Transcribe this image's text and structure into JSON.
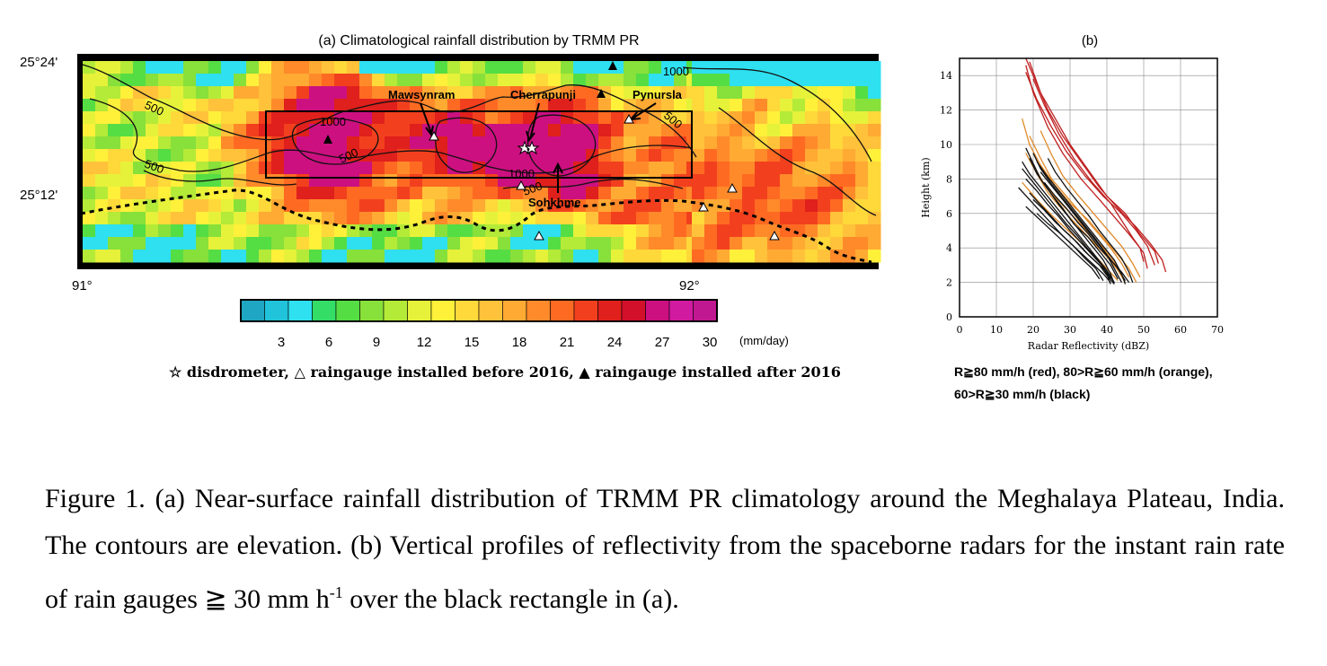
{
  "panel_a": {
    "title": "(a) Climatological rainfall distribution by TRMM PR",
    "lat_labels": [
      "25°24'",
      "25°12'"
    ],
    "lon_labels": [
      "91°",
      "92°"
    ],
    "contour_labels": [
      "1000",
      "500",
      "500",
      "1000",
      "500",
      "1000",
      "500",
      "500"
    ],
    "place_labels": {
      "mawsynram": "Mawsynram",
      "cherrapunji": "Cherrapunji",
      "pynursla": "Pynursla",
      "sohkhme": "Sohkhme"
    },
    "colorbar": {
      "ticks": [
        "3",
        "6",
        "9",
        "12",
        "15",
        "18",
        "21",
        "24",
        "27",
        "30"
      ],
      "unit": "(mm/day)",
      "colors": [
        "#1fa6c2",
        "#20c3da",
        "#2ee0f0",
        "#33dd66",
        "#55dd44",
        "#88e03a",
        "#b4ea38",
        "#e6f23a",
        "#fff03a",
        "#ffd83a",
        "#ffc23a",
        "#ffaa33",
        "#ff8a2a",
        "#ff6a22",
        "#f2401e",
        "#e0201c",
        "#d2102a",
        "#cc1080",
        "#d01aa0",
        "#c01890"
      ]
    },
    "symbol_legend": "☆ disdrometer, △ raingauge installed before 2016, ▲ raingauge installed after 2016"
  },
  "chart_data": {
    "type": "line",
    "title": "(b)",
    "xlabel": "Radar Reflectivity (dBZ)",
    "ylabel": "Height (km)",
    "xlim": [
      0,
      70
    ],
    "ylim": [
      0,
      15
    ],
    "x_ticks": [
      "0",
      "10",
      "20",
      "30",
      "40",
      "50",
      "60",
      "70"
    ],
    "y_ticks": [
      "0",
      "2",
      "4",
      "6",
      "8",
      "10",
      "12",
      "14"
    ],
    "grid": true,
    "series": [
      {
        "color": "#c02020",
        "values": [
          [
            18,
            15
          ],
          [
            21,
            13.5
          ],
          [
            24,
            12
          ],
          [
            28,
            10.5
          ],
          [
            33,
            9
          ],
          [
            38,
            7.5
          ],
          [
            43,
            6.3
          ],
          [
            48,
            5.2
          ],
          [
            52,
            4.2
          ],
          [
            55,
            3.3
          ],
          [
            56,
            2.6
          ]
        ]
      },
      {
        "color": "#c02020",
        "values": [
          [
            19,
            14.8
          ],
          [
            22,
            13
          ],
          [
            26,
            11.5
          ],
          [
            30,
            10
          ],
          [
            35,
            8.5
          ],
          [
            40,
            7
          ],
          [
            45,
            6
          ],
          [
            49,
            4.8
          ],
          [
            53,
            3.8
          ],
          [
            54,
            3.1
          ]
        ]
      },
      {
        "color": "#c02020",
        "values": [
          [
            18,
            14.6
          ],
          [
            20,
            13
          ],
          [
            24,
            11
          ],
          [
            28,
            9.5
          ],
          [
            33,
            8
          ],
          [
            38,
            6.8
          ],
          [
            42,
            5.8
          ],
          [
            46,
            4.8
          ],
          [
            49,
            4
          ],
          [
            50,
            3.2
          ]
        ]
      },
      {
        "color": "#c02020",
        "values": [
          [
            20,
            13.8
          ],
          [
            23,
            12.3
          ],
          [
            27,
            10.6
          ],
          [
            31,
            9.2
          ],
          [
            36,
            7.8
          ],
          [
            41,
            6.6
          ],
          [
            44,
            5.6
          ],
          [
            47,
            4.6
          ],
          [
            50,
            3.7
          ],
          [
            51,
            2.8
          ]
        ]
      },
      {
        "color": "#c02020",
        "values": [
          [
            18,
            14.2
          ],
          [
            21,
            12.6
          ],
          [
            25,
            11
          ],
          [
            29,
            9.6
          ],
          [
            34,
            8.2
          ],
          [
            39,
            7
          ],
          [
            44,
            6
          ],
          [
            48,
            5
          ],
          [
            51,
            4.1
          ],
          [
            53,
            3
          ]
        ]
      },
      {
        "color": "#e08a2a",
        "values": [
          [
            17,
            11.5
          ],
          [
            19,
            10
          ],
          [
            22,
            8.8
          ],
          [
            26,
            7.6
          ],
          [
            30,
            6.6
          ],
          [
            35,
            5.6
          ],
          [
            39,
            4.6
          ],
          [
            43,
            3.6
          ],
          [
            46,
            2.8
          ],
          [
            48,
            2
          ]
        ]
      },
      {
        "color": "#e08a2a",
        "values": [
          [
            19,
            10.5
          ],
          [
            22,
            9.2
          ],
          [
            25,
            8
          ],
          [
            29,
            7
          ],
          [
            33,
            6
          ],
          [
            37,
            5
          ],
          [
            41,
            4
          ],
          [
            44,
            3.1
          ],
          [
            46,
            2.3
          ]
        ]
      },
      {
        "color": "#e08a2a",
        "values": [
          [
            18,
            9.5
          ],
          [
            21,
            8.3
          ],
          [
            24,
            7.2
          ],
          [
            28,
            6.2
          ],
          [
            32,
            5.3
          ],
          [
            36,
            4.4
          ],
          [
            40,
            3.5
          ],
          [
            43,
            2.7
          ],
          [
            45,
            2
          ]
        ]
      },
      {
        "color": "#e08a2a",
        "values": [
          [
            20,
            8.8
          ],
          [
            23,
            7.7
          ],
          [
            27,
            6.7
          ],
          [
            31,
            5.8
          ],
          [
            35,
            4.9
          ],
          [
            39,
            4
          ],
          [
            42,
            3.2
          ],
          [
            44,
            2.4
          ]
        ]
      },
      {
        "color": "#e08a2a",
        "values": [
          [
            22,
            10.8
          ],
          [
            25,
            9.4
          ],
          [
            28,
            8.2
          ],
          [
            32,
            7.1
          ],
          [
            36,
            6.1
          ],
          [
            40,
            5.1
          ],
          [
            44,
            4.1
          ],
          [
            47,
            3.1
          ],
          [
            49,
            2.3
          ]
        ]
      },
      {
        "color": "#e08a2a",
        "values": [
          [
            17,
            7.8
          ],
          [
            21,
            6.8
          ],
          [
            25,
            5.9
          ],
          [
            29,
            5.1
          ],
          [
            33,
            4.3
          ],
          [
            37,
            3.5
          ],
          [
            40,
            2.8
          ],
          [
            43,
            2.1
          ]
        ]
      },
      {
        "color": "#111111",
        "values": [
          [
            18,
            9.8
          ],
          [
            20,
            8.9
          ],
          [
            22,
            8
          ],
          [
            25,
            7.1
          ],
          [
            28,
            6.3
          ],
          [
            31,
            5.4
          ],
          [
            35,
            4.6
          ],
          [
            38,
            3.8
          ],
          [
            41,
            3
          ],
          [
            43,
            2.2
          ]
        ]
      },
      {
        "color": "#111111",
        "values": [
          [
            19,
            9.2
          ],
          [
            21,
            8.3
          ],
          [
            24,
            7.4
          ],
          [
            27,
            6.5
          ],
          [
            30,
            5.7
          ],
          [
            33,
            4.9
          ],
          [
            36,
            4.1
          ],
          [
            39,
            3.3
          ],
          [
            41,
            2.5
          ],
          [
            42,
            1.9
          ]
        ]
      },
      {
        "color": "#111111",
        "values": [
          [
            17,
            8.6
          ],
          [
            20,
            7.8
          ],
          [
            23,
            7
          ],
          [
            26,
            6.2
          ],
          [
            29,
            5.4
          ],
          [
            32,
            4.7
          ],
          [
            35,
            3.9
          ],
          [
            38,
            3.2
          ],
          [
            40,
            2.5
          ],
          [
            41,
            1.9
          ]
        ]
      },
      {
        "color": "#111111",
        "values": [
          [
            20,
            9.5
          ],
          [
            22,
            8.6
          ],
          [
            25,
            7.7
          ],
          [
            28,
            6.9
          ],
          [
            31,
            6.1
          ],
          [
            34,
            5.3
          ],
          [
            37,
            4.5
          ],
          [
            40,
            3.6
          ],
          [
            42,
            2.8
          ],
          [
            44,
            2
          ]
        ]
      },
      {
        "color": "#111111",
        "values": [
          [
            18,
            8
          ],
          [
            21,
            7.3
          ],
          [
            24,
            6.5
          ],
          [
            27,
            5.8
          ],
          [
            30,
            5
          ],
          [
            33,
            4.3
          ],
          [
            36,
            3.6
          ],
          [
            39,
            2.9
          ],
          [
            41,
            2.2
          ]
        ]
      },
      {
        "color": "#111111",
        "values": [
          [
            16,
            7.5
          ],
          [
            19,
            6.8
          ],
          [
            22,
            6.1
          ],
          [
            25,
            5.4
          ],
          [
            28,
            4.7
          ],
          [
            31,
            4.1
          ],
          [
            34,
            3.4
          ],
          [
            37,
            2.8
          ],
          [
            39,
            2.1
          ]
        ]
      },
      {
        "color": "#111111",
        "values": [
          [
            19,
            7.2
          ],
          [
            22,
            6.5
          ],
          [
            25,
            5.8
          ],
          [
            28,
            5.1
          ],
          [
            31,
            4.5
          ],
          [
            34,
            3.8
          ],
          [
            37,
            3.2
          ],
          [
            40,
            2.6
          ],
          [
            42,
            2
          ]
        ]
      },
      {
        "color": "#111111",
        "values": [
          [
            21,
            9
          ],
          [
            24,
            8.1
          ],
          [
            27,
            7.3
          ],
          [
            30,
            6.5
          ],
          [
            33,
            5.7
          ],
          [
            36,
            4.9
          ],
          [
            39,
            4.1
          ],
          [
            42,
            3.3
          ],
          [
            44,
            2.5
          ],
          [
            45,
            1.9
          ]
        ]
      },
      {
        "color": "#111111",
        "values": [
          [
            22,
            8.4
          ],
          [
            25,
            7.6
          ],
          [
            28,
            6.8
          ],
          [
            31,
            6
          ],
          [
            34,
            5.2
          ],
          [
            37,
            4.4
          ],
          [
            40,
            3.6
          ],
          [
            43,
            2.8
          ],
          [
            45,
            2.1
          ]
        ]
      },
      {
        "color": "#111111",
        "values": [
          [
            20,
            6.8
          ],
          [
            23,
            6.2
          ],
          [
            26,
            5.5
          ],
          [
            29,
            4.9
          ],
          [
            32,
            4.3
          ],
          [
            35,
            3.6
          ],
          [
            38,
            3
          ],
          [
            40,
            2.4
          ],
          [
            42,
            1.9
          ]
        ]
      },
      {
        "color": "#111111",
        "values": [
          [
            18,
            6.4
          ],
          [
            21,
            5.8
          ],
          [
            24,
            5.2
          ],
          [
            27,
            4.6
          ],
          [
            30,
            4
          ],
          [
            33,
            3.4
          ],
          [
            36,
            2.8
          ],
          [
            38,
            2.2
          ]
        ]
      },
      {
        "color": "#111111",
        "values": [
          [
            23,
            7.8
          ],
          [
            26,
            7
          ],
          [
            29,
            6.3
          ],
          [
            32,
            5.5
          ],
          [
            35,
            4.8
          ],
          [
            38,
            4
          ],
          [
            41,
            3.3
          ],
          [
            44,
            2.6
          ],
          [
            46,
            2
          ]
        ]
      },
      {
        "color": "#111111",
        "values": [
          [
            17,
            9
          ],
          [
            19,
            8.3
          ],
          [
            22,
            7.5
          ],
          [
            25,
            6.7
          ],
          [
            28,
            5.9
          ],
          [
            31,
            5.1
          ],
          [
            34,
            4.3
          ],
          [
            37,
            3.5
          ],
          [
            40,
            2.7
          ],
          [
            42,
            2
          ]
        ]
      },
      {
        "color": "#111111",
        "values": [
          [
            21,
            6
          ],
          [
            24,
            5.4
          ],
          [
            27,
            4.9
          ],
          [
            30,
            4.3
          ],
          [
            33,
            3.7
          ],
          [
            36,
            3.1
          ],
          [
            39,
            2.5
          ],
          [
            41,
            2
          ]
        ]
      },
      {
        "color": "#111111",
        "values": [
          [
            24,
            9.2
          ],
          [
            26,
            8.4
          ],
          [
            29,
            7.5
          ],
          [
            32,
            6.7
          ],
          [
            35,
            5.9
          ],
          [
            38,
            5
          ],
          [
            41,
            4.2
          ],
          [
            44,
            3.4
          ],
          [
            46,
            2.6
          ],
          [
            47,
            2
          ]
        ]
      }
    ]
  },
  "panel_b": {
    "notes": [
      "R≧80 mm/h (red), 80>R≧60 mm/h (orange),",
      "60>R≧30 mm/h (black)"
    ]
  },
  "caption": {
    "line1": "Figure 1. (a) Near-surface rainfall distribution of TRMM PR climatology around the Meghalaya Plateau, India. The contours are elevation. (b) Vertical profiles of reflectivity from the spaceborne radars for the instant rain rate of rain gauges ",
    "symbol": "≧",
    "line2": " 30 mm h",
    "sup": "-1",
    "line3": " over the black rectangle in (a)."
  }
}
